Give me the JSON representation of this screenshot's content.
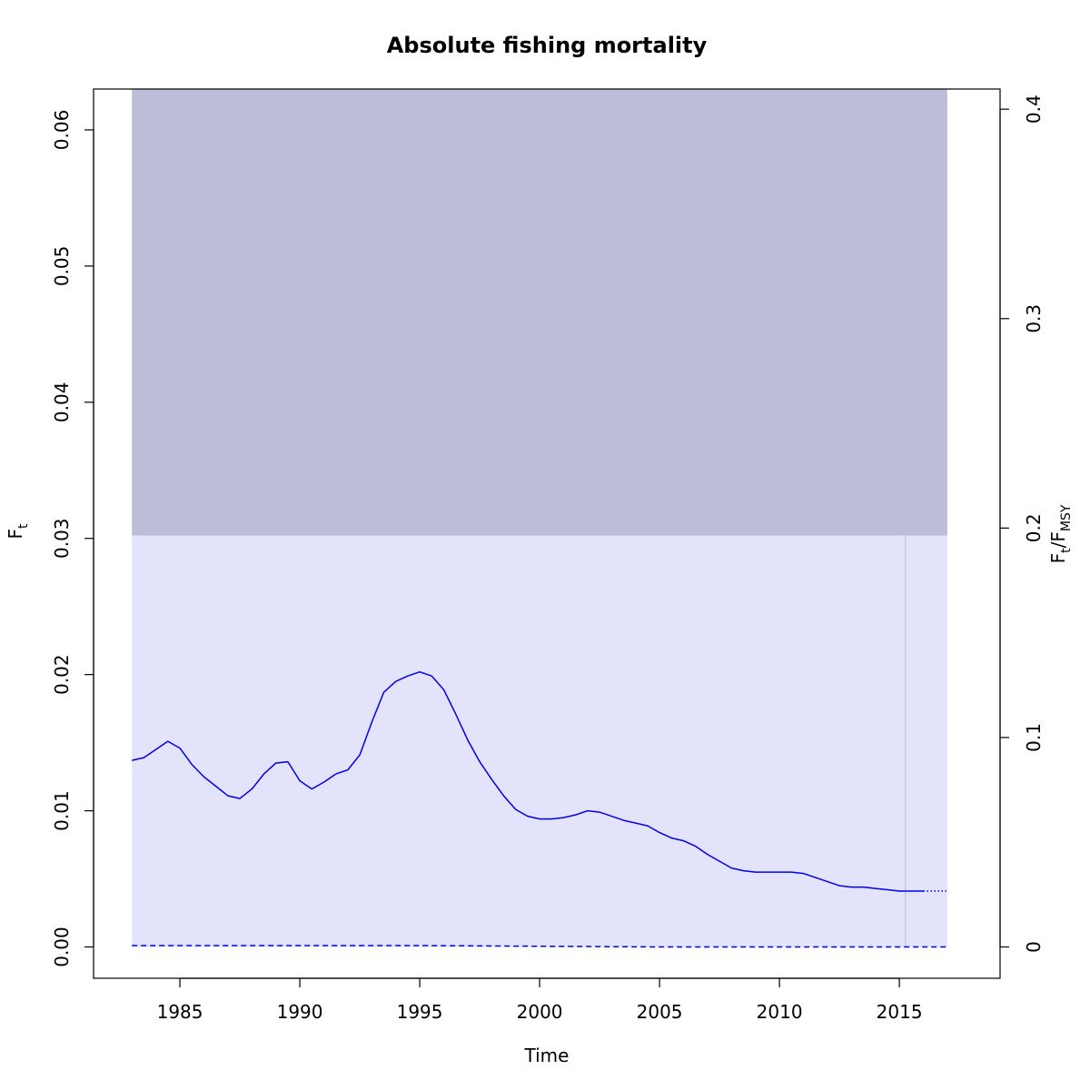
{
  "chart_data": {
    "type": "line",
    "title": "Absolute fishing mortality",
    "xlabel": "Time",
    "ylabel": {
      "main": "F",
      "sub": "t"
    },
    "y2label": {
      "main1": "F",
      "sub1": "t",
      "sep": "/F",
      "sub2": "MSY"
    },
    "xlim": [
      1981.4,
      2019.2
    ],
    "ylim": [
      -0.0023,
      0.063
    ],
    "x_ticks": [
      1985,
      1990,
      1995,
      2000,
      2005,
      2010,
      2015
    ],
    "x_tick_labels": [
      "1985",
      "1990",
      "1995",
      "2000",
      "2005",
      "2010",
      "2015"
    ],
    "y_ticks": [
      0.0,
      0.01,
      0.02,
      0.03,
      0.04,
      0.05,
      0.06
    ],
    "y_tick_labels": [
      "0.00",
      "0.01",
      "0.02",
      "0.03",
      "0.04",
      "0.05",
      "0.06"
    ],
    "y2_ticks": [
      0,
      0.1,
      0.2,
      0.3,
      0.4
    ],
    "y2_tick_labels": [
      "0",
      "0.1",
      "0.2",
      "0.3",
      "0.4"
    ],
    "y2_scale_fmsy": 0.1538,
    "fmsy_region": {
      "x_start": 1983,
      "x_end": 2017,
      "lower_band_top": 0.0302,
      "lower_color": "#e3e3fc",
      "upper_color": "#bdbdd8"
    },
    "last_obs_line_x": 2015.25,
    "series": [
      {
        "style": "solid",
        "color": "#0000ee",
        "x": [
          1983,
          1983.5,
          1984,
          1984.5,
          1985,
          1985.5,
          1986,
          1986.5,
          1987,
          1987.5,
          1988,
          1988.5,
          1989,
          1989.5,
          1990,
          1990.5,
          1991,
          1991.5,
          1992,
          1992.5,
          1993,
          1993.5,
          1994,
          1994.5,
          1995,
          1995.5,
          1996,
          1996.5,
          1997,
          1997.5,
          1998,
          1998.5,
          1999,
          1999.5,
          2000,
          2000.5,
          2001,
          2001.5,
          2002,
          2002.5,
          2003,
          2003.5,
          2004,
          2004.5,
          2005,
          2005.5,
          2006,
          2006.5,
          2007,
          2007.5,
          2008,
          2008.5,
          2009,
          2009.5,
          2010,
          2010.5,
          2011,
          2011.5,
          2012,
          2012.5,
          2013,
          2013.5,
          2014,
          2014.5,
          2015,
          2015.5,
          2016
        ],
        "y": [
          0.0137,
          0.0139,
          0.0145,
          0.0151,
          0.0146,
          0.0134,
          0.0125,
          0.0118,
          0.0111,
          0.0109,
          0.0116,
          0.0127,
          0.0135,
          0.0136,
          0.0122,
          0.0116,
          0.0121,
          0.0127,
          0.013,
          0.0141,
          0.0165,
          0.0187,
          0.0195,
          0.0199,
          0.0202,
          0.0199,
          0.0189,
          0.0171,
          0.0152,
          0.0136,
          0.0123,
          0.0111,
          0.0101,
          0.0096,
          0.0094,
          0.0094,
          0.0095,
          0.0097,
          0.01,
          0.0099,
          0.0096,
          0.0093,
          0.0091,
          0.0089,
          0.0084,
          0.008,
          0.0078,
          0.0074,
          0.0068,
          0.0063,
          0.0058,
          0.0056,
          0.0055,
          0.0055,
          0.0055,
          0.0055,
          0.0054,
          0.0051,
          0.0048,
          0.0045,
          0.0044,
          0.0044,
          0.0043,
          0.0042,
          0.0041,
          0.0041,
          0.0041
        ]
      },
      {
        "style": "dotted",
        "color": "#0000ee",
        "x": [
          2016,
          2017
        ],
        "y": [
          0.0041,
          0.0041
        ]
      },
      {
        "style": "dashed",
        "color": "#0000ee",
        "x": [
          1983,
          1995,
          2005,
          2017
        ],
        "y": [
          0.0001,
          0.0001,
          0.0,
          0.0
        ]
      }
    ]
  }
}
